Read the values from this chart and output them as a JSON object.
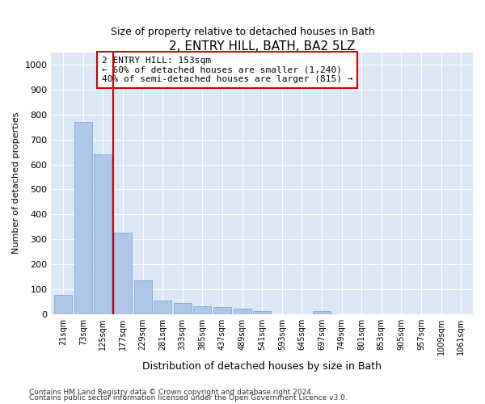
{
  "title": "2, ENTRY HILL, BATH, BA2 5LZ",
  "subtitle": "Size of property relative to detached houses in Bath",
  "xlabel": "Distribution of detached houses by size in Bath",
  "ylabel": "Number of detached properties",
  "categories": [
    "21sqm",
    "73sqm",
    "125sqm",
    "177sqm",
    "229sqm",
    "281sqm",
    "333sqm",
    "385sqm",
    "437sqm",
    "489sqm",
    "541sqm",
    "593sqm",
    "645sqm",
    "697sqm",
    "749sqm",
    "801sqm",
    "853sqm",
    "905sqm",
    "957sqm",
    "1009sqm",
    "1061sqm"
  ],
  "values": [
    75,
    770,
    640,
    325,
    135,
    55,
    45,
    30,
    28,
    20,
    10,
    0,
    0,
    10,
    0,
    0,
    0,
    0,
    0,
    0,
    0
  ],
  "bar_color": "#aec6e8",
  "bar_edge_color": "#7aadd4",
  "vline_x_index": 2.5,
  "vline_color": "#cc0000",
  "annotation_line1": "2 ENTRY HILL: 153sqm",
  "annotation_line2": "← 60% of detached houses are smaller (1,240)",
  "annotation_line3": "40% of semi-detached houses are larger (815) →",
  "annotation_box_color": "#cc0000",
  "ylim": [
    0,
    1050
  ],
  "yticks": [
    0,
    100,
    200,
    300,
    400,
    500,
    600,
    700,
    800,
    900,
    1000
  ],
  "footer_line1": "Contains HM Land Registry data © Crown copyright and database right 2024.",
  "footer_line2": "Contains public sector information licensed under the Open Government Licence v3.0.",
  "fig_bg_color": "#ffffff",
  "plot_bg_color": "#dce8f5"
}
